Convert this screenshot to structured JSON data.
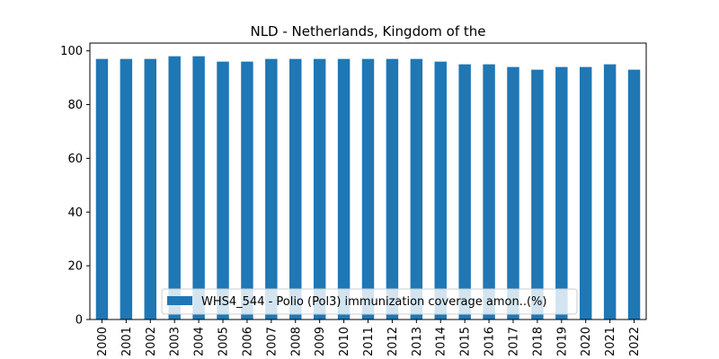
{
  "chart_data": {
    "type": "bar",
    "title": "NLD - Netherlands, Kingdom of the",
    "xlabel": "",
    "ylabel": "",
    "categories": [
      "2000",
      "2001",
      "2002",
      "2003",
      "2004",
      "2005",
      "2006",
      "2007",
      "2008",
      "2009",
      "2010",
      "2011",
      "2012",
      "2013",
      "2014",
      "2015",
      "2016",
      "2017",
      "2018",
      "2019",
      "2020",
      "2021",
      "2022"
    ],
    "series": [
      {
        "name": "WHS4_544 - Polio (Pol3) immunization coverage amon..(%)",
        "values": [
          97,
          97,
          97,
          98,
          98,
          96,
          96,
          97,
          97,
          97,
          97,
          97,
          97,
          97,
          96,
          95,
          95,
          94,
          93,
          94,
          94,
          95,
          93
        ],
        "color": "#1f77b4"
      }
    ],
    "ylim": [
      0,
      102.9
    ],
    "yticks": [
      0,
      20,
      40,
      60,
      80,
      100
    ],
    "grid": false,
    "legend_position": "lower center"
  }
}
